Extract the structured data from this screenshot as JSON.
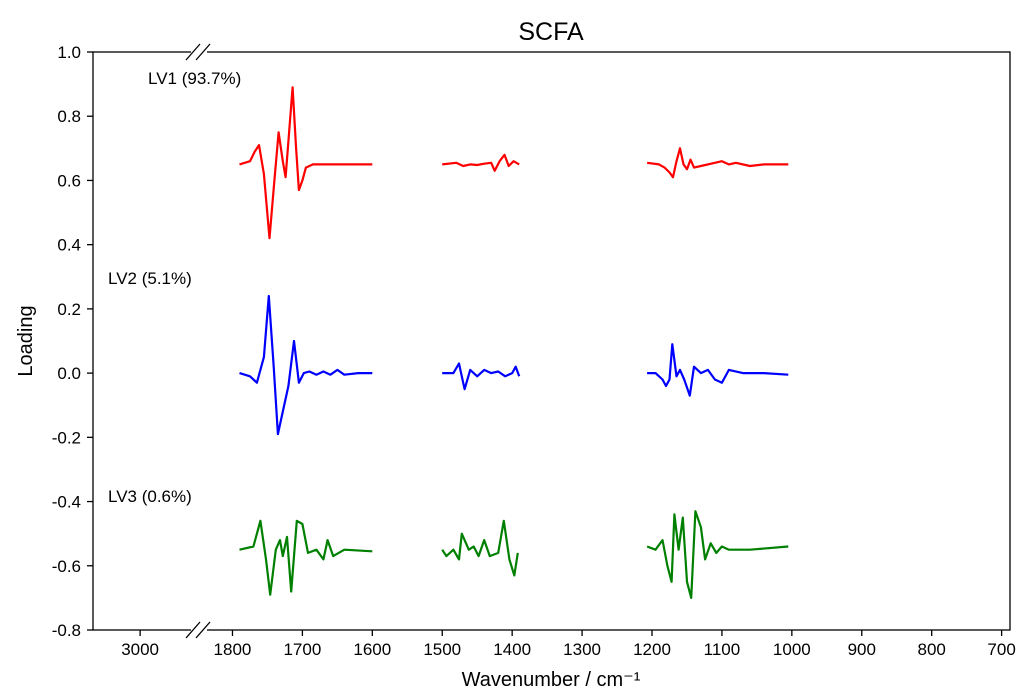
{
  "chart_data": {
    "type": "line",
    "title": "SCFA",
    "xlabel": "Wavenumber / cm⁻¹",
    "ylabel": "Loading",
    "xsegments": [
      [
        3068,
        2928
      ],
      [
        1835,
        688
      ]
    ],
    "xticks": [
      3000,
      1800,
      1700,
      1600,
      1500,
      1400,
      1300,
      1200,
      1100,
      1000,
      900,
      800,
      700
    ],
    "ylim": [
      -0.8,
      1.0
    ],
    "yticks": [
      {
        "value": -0.8,
        "label": "-0.8"
      },
      -0.6,
      -0.4,
      -0.2,
      {
        "value": 0,
        "label": "0.0"
      },
      0.2,
      0.4,
      0.6,
      0.8,
      {
        "value": 1,
        "label": "1.0"
      }
    ],
    "series": [
      {
        "name": "LV1 (93.7%)",
        "color": "#ff0000",
        "x": [
          1790,
          1775,
          1768,
          1762,
          1755,
          1747,
          1740,
          1734,
          1728,
          1724,
          1719,
          1714,
          1709,
          1705,
          1700,
          1695,
          1685,
          1670,
          1600,
          1550,
          1500,
          1480,
          1470,
          1460,
          1450,
          1440,
          1430,
          1425,
          1418,
          1411,
          1405,
          1398,
          1390,
          1300,
          1207,
          1190,
          1182,
          1175,
          1170,
          1165,
          1160,
          1155,
          1150,
          1145,
          1140,
          1130,
          1110,
          1100,
          1090,
          1080,
          1060,
          1040,
          1005
        ],
        "values": [
          0.65,
          0.66,
          0.69,
          0.71,
          0.62,
          0.42,
          0.6,
          0.75,
          0.66,
          0.61,
          0.75,
          0.89,
          0.7,
          0.57,
          0.6,
          0.64,
          0.65,
          0.65,
          0.65,
          null,
          0.65,
          0.655,
          0.645,
          0.65,
          0.648,
          0.652,
          0.655,
          0.63,
          0.66,
          0.68,
          0.645,
          0.66,
          0.65,
          null,
          0.655,
          0.65,
          0.64,
          0.625,
          0.61,
          0.66,
          0.7,
          0.65,
          0.635,
          0.665,
          0.64,
          0.645,
          0.655,
          0.66,
          0.65,
          0.655,
          0.645,
          0.65,
          0.65
        ]
      },
      {
        "name": "LV2 (5.1%)",
        "color": "#0000ff",
        "x": [
          1790,
          1775,
          1765,
          1755,
          1748,
          1741,
          1735,
          1728,
          1720,
          1712,
          1705,
          1698,
          1690,
          1680,
          1670,
          1660,
          1650,
          1640,
          1620,
          1600,
          1550,
          1500,
          1484,
          1476,
          1468,
          1460,
          1450,
          1440,
          1430,
          1420,
          1410,
          1400,
          1395,
          1390,
          1300,
          1207,
          1195,
          1185,
          1180,
          1175,
          1171,
          1165,
          1160,
          1154,
          1146,
          1140,
          1130,
          1120,
          1110,
          1100,
          1090,
          1070,
          1040,
          1005
        ],
        "values": [
          0,
          -0.01,
          -0.03,
          0.05,
          0.24,
          0.02,
          -0.19,
          -0.12,
          -0.04,
          0.1,
          -0.03,
          0.0,
          0.005,
          -0.005,
          0.005,
          -0.005,
          0.01,
          -0.005,
          0.0,
          0.0,
          null,
          0.0,
          0.0,
          0.03,
          -0.05,
          0.01,
          -0.01,
          0.01,
          0.0,
          0.005,
          -0.01,
          0.0,
          0.02,
          -0.01,
          null,
          0.0,
          0.0,
          -0.02,
          -0.04,
          -0.02,
          0.09,
          -0.01,
          0.01,
          -0.02,
          -0.07,
          0.02,
          0.0,
          0.01,
          -0.02,
          -0.03,
          0.01,
          0.0,
          0.0,
          -0.005
        ]
      },
      {
        "name": "LV3 (0.6%)",
        "color": "#008000",
        "x": [
          1790,
          1770,
          1760,
          1752,
          1746,
          1738,
          1732,
          1728,
          1722,
          1716,
          1708,
          1700,
          1692,
          1680,
          1670,
          1664,
          1656,
          1640,
          1600,
          1550,
          1500,
          1494,
          1484,
          1476,
          1472,
          1462,
          1455,
          1448,
          1440,
          1432,
          1420,
          1412,
          1404,
          1397,
          1392,
          1300,
          1207,
          1195,
          1185,
          1178,
          1172,
          1168,
          1162,
          1156,
          1150,
          1144,
          1138,
          1130,
          1124,
          1116,
          1108,
          1100,
          1090,
          1060,
          1005
        ],
        "values": [
          -0.55,
          -0.54,
          -0.46,
          -0.58,
          -0.69,
          -0.55,
          -0.52,
          -0.57,
          -0.51,
          -0.68,
          -0.46,
          -0.47,
          -0.56,
          -0.55,
          -0.58,
          -0.52,
          -0.57,
          -0.55,
          -0.555,
          null,
          -0.55,
          -0.57,
          -0.55,
          -0.58,
          -0.5,
          -0.55,
          -0.54,
          -0.57,
          -0.52,
          -0.57,
          -0.56,
          -0.46,
          -0.58,
          -0.63,
          -0.56,
          null,
          -0.54,
          -0.55,
          -0.52,
          -0.6,
          -0.65,
          -0.44,
          -0.55,
          -0.45,
          -0.65,
          -0.7,
          -0.43,
          -0.48,
          -0.58,
          -0.53,
          -0.56,
          -0.54,
          -0.55,
          -0.55,
          -0.54
        ]
      }
    ]
  }
}
